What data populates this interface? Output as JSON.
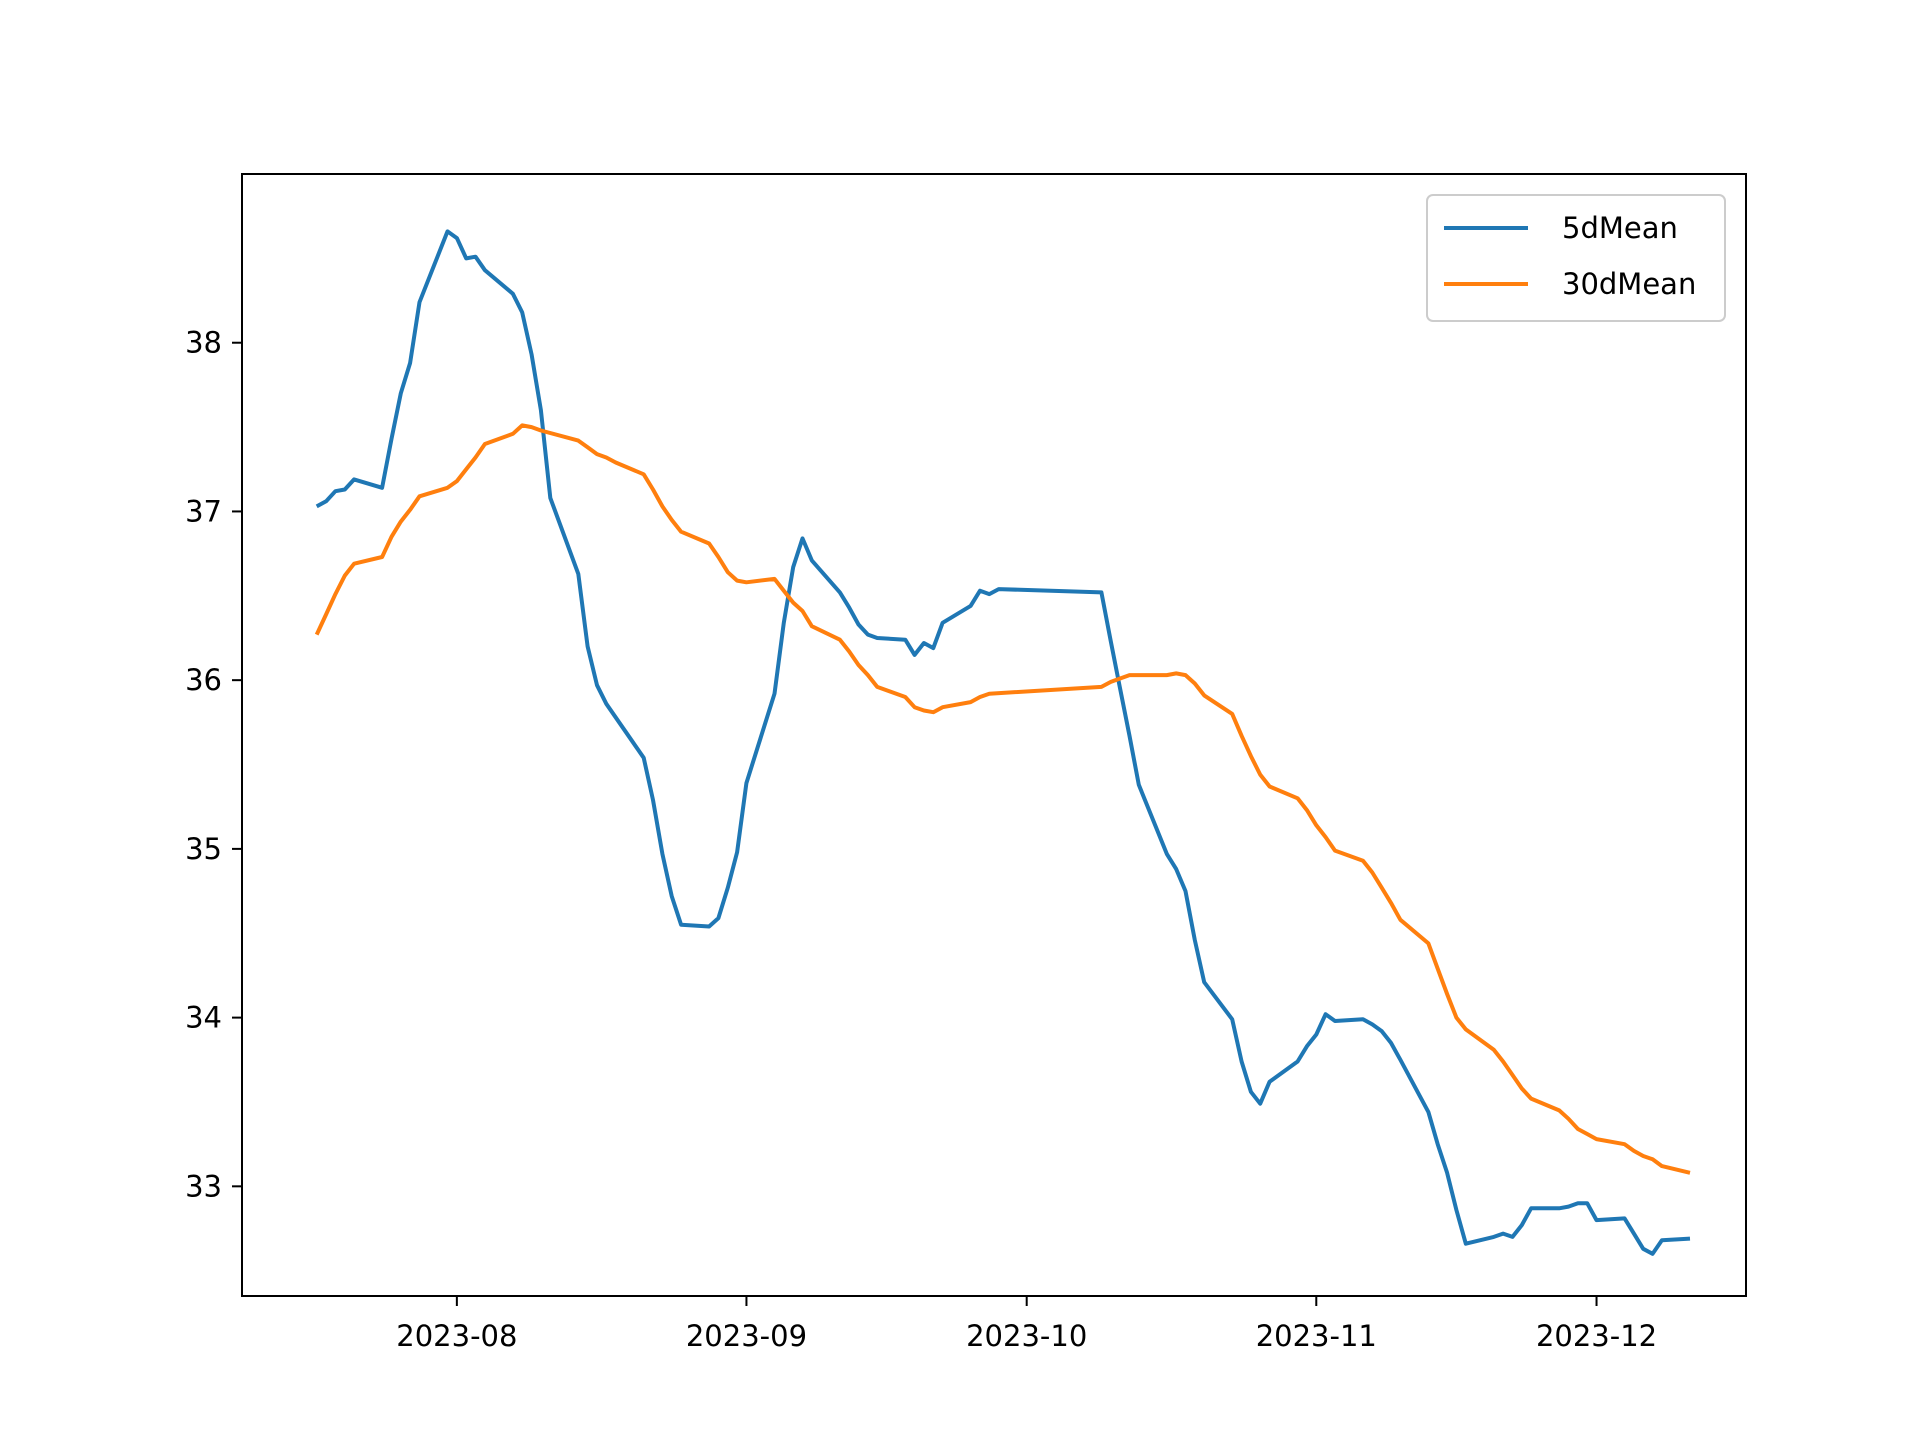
{
  "chart_data": {
    "type": "line",
    "title": "",
    "xlabel": "",
    "ylabel": "",
    "xlim": [
      "2023-07-09",
      "2023-12-17"
    ],
    "ylim": [
      32.35,
      39.0
    ],
    "grid": false,
    "legend_position": "top-right",
    "x_ticks": [
      {
        "date": "2023-08-01",
        "label": "2023-08"
      },
      {
        "date": "2023-09-01",
        "label": "2023-09"
      },
      {
        "date": "2023-10-01",
        "label": "2023-10"
      },
      {
        "date": "2023-11-01",
        "label": "2023-11"
      },
      {
        "date": "2023-12-01",
        "label": "2023-12"
      }
    ],
    "y_ticks": [
      {
        "value": 33,
        "label": "33"
      },
      {
        "value": 34,
        "label": "34"
      },
      {
        "value": 35,
        "label": "35"
      },
      {
        "value": 36,
        "label": "36"
      },
      {
        "value": 37,
        "label": "37"
      },
      {
        "value": 38,
        "label": "38"
      }
    ],
    "series": [
      {
        "name": "5dMean",
        "color": "#1f77b4",
        "points": [
          [
            "2023-07-17",
            37.03
          ],
          [
            "2023-07-18",
            37.06
          ],
          [
            "2023-07-19",
            37.12
          ],
          [
            "2023-07-20",
            37.13
          ],
          [
            "2023-07-21",
            37.19
          ],
          [
            "2023-07-24",
            37.14
          ],
          [
            "2023-07-25",
            37.43
          ],
          [
            "2023-07-26",
            37.7
          ],
          [
            "2023-07-27",
            37.88
          ],
          [
            "2023-07-28",
            38.24
          ],
          [
            "2023-07-31",
            38.66
          ],
          [
            "2023-08-01",
            38.62
          ],
          [
            "2023-08-02",
            38.5
          ],
          [
            "2023-08-03",
            38.51
          ],
          [
            "2023-08-04",
            38.43
          ],
          [
            "2023-08-07",
            38.29
          ],
          [
            "2023-08-08",
            38.18
          ],
          [
            "2023-08-09",
            37.93
          ],
          [
            "2023-08-10",
            37.6
          ],
          [
            "2023-08-11",
            37.08
          ],
          [
            "2023-08-14",
            36.63
          ],
          [
            "2023-08-15",
            36.2
          ],
          [
            "2023-08-16",
            35.97
          ],
          [
            "2023-08-17",
            35.86
          ],
          [
            "2023-08-21",
            35.54
          ],
          [
            "2023-08-22",
            35.29
          ],
          [
            "2023-08-23",
            34.97
          ],
          [
            "2023-08-24",
            34.72
          ],
          [
            "2023-08-25",
            34.55
          ],
          [
            "2023-08-28",
            34.54
          ],
          [
            "2023-08-29",
            34.59
          ],
          [
            "2023-08-30",
            34.77
          ],
          [
            "2023-08-31",
            34.98
          ],
          [
            "2023-09-01",
            35.39
          ],
          [
            "2023-09-04",
            35.92
          ],
          [
            "2023-09-05",
            36.34
          ],
          [
            "2023-09-06",
            36.67
          ],
          [
            "2023-09-07",
            36.84
          ],
          [
            "2023-09-08",
            36.71
          ],
          [
            "2023-09-11",
            36.52
          ],
          [
            "2023-09-12",
            36.43
          ],
          [
            "2023-09-13",
            36.33
          ],
          [
            "2023-09-14",
            36.27
          ],
          [
            "2023-09-15",
            36.25
          ],
          [
            "2023-09-18",
            36.24
          ],
          [
            "2023-09-19",
            36.15
          ],
          [
            "2023-09-20",
            36.22
          ],
          [
            "2023-09-21",
            36.19
          ],
          [
            "2023-09-22",
            36.34
          ],
          [
            "2023-09-25",
            36.44
          ],
          [
            "2023-09-26",
            36.53
          ],
          [
            "2023-09-27",
            36.51
          ],
          [
            "2023-09-28",
            36.54
          ],
          [
            "2023-10-09",
            36.52
          ],
          [
            "2023-10-10",
            36.23
          ],
          [
            "2023-10-11",
            35.95
          ],
          [
            "2023-10-12",
            35.67
          ],
          [
            "2023-10-13",
            35.38
          ],
          [
            "2023-10-16",
            34.97
          ],
          [
            "2023-10-17",
            34.88
          ],
          [
            "2023-10-18",
            34.75
          ],
          [
            "2023-10-19",
            34.46
          ],
          [
            "2023-10-20",
            34.21
          ],
          [
            "2023-10-23",
            33.99
          ],
          [
            "2023-10-24",
            33.74
          ],
          [
            "2023-10-25",
            33.56
          ],
          [
            "2023-10-26",
            33.49
          ],
          [
            "2023-10-27",
            33.62
          ],
          [
            "2023-10-30",
            33.74
          ],
          [
            "2023-10-31",
            33.83
          ],
          [
            "2023-11-01",
            33.9
          ],
          [
            "2023-11-02",
            34.02
          ],
          [
            "2023-11-03",
            33.98
          ],
          [
            "2023-11-06",
            33.99
          ],
          [
            "2023-11-07",
            33.96
          ],
          [
            "2023-11-08",
            33.92
          ],
          [
            "2023-11-09",
            33.85
          ],
          [
            "2023-11-10",
            33.75
          ],
          [
            "2023-11-13",
            33.44
          ],
          [
            "2023-11-14",
            33.25
          ],
          [
            "2023-11-15",
            33.08
          ],
          [
            "2023-11-16",
            32.86
          ],
          [
            "2023-11-17",
            32.66
          ],
          [
            "2023-11-20",
            32.7
          ],
          [
            "2023-11-21",
            32.72
          ],
          [
            "2023-11-22",
            32.7
          ],
          [
            "2023-11-23",
            32.77
          ],
          [
            "2023-11-24",
            32.87
          ],
          [
            "2023-11-27",
            32.87
          ],
          [
            "2023-11-28",
            32.88
          ],
          [
            "2023-11-29",
            32.9
          ],
          [
            "2023-11-30",
            32.9
          ],
          [
            "2023-12-01",
            32.8
          ],
          [
            "2023-12-04",
            32.81
          ],
          [
            "2023-12-05",
            32.72
          ],
          [
            "2023-12-06",
            32.63
          ],
          [
            "2023-12-07",
            32.6
          ],
          [
            "2023-12-08",
            32.68
          ],
          [
            "2023-12-11",
            32.69
          ]
        ]
      },
      {
        "name": "30dMean",
        "color": "#ff7f0e",
        "points": [
          [
            "2023-07-17",
            36.27
          ],
          [
            "2023-07-18",
            36.39
          ],
          [
            "2023-07-19",
            36.51
          ],
          [
            "2023-07-20",
            36.62
          ],
          [
            "2023-07-21",
            36.69
          ],
          [
            "2023-07-24",
            36.73
          ],
          [
            "2023-07-25",
            36.85
          ],
          [
            "2023-07-26",
            36.94
          ],
          [
            "2023-07-27",
            37.01
          ],
          [
            "2023-07-28",
            37.09
          ],
          [
            "2023-07-31",
            37.14
          ],
          [
            "2023-08-01",
            37.18
          ],
          [
            "2023-08-02",
            37.25
          ],
          [
            "2023-08-03",
            37.32
          ],
          [
            "2023-08-04",
            37.4
          ],
          [
            "2023-08-07",
            37.46
          ],
          [
            "2023-08-08",
            37.51
          ],
          [
            "2023-08-09",
            37.5
          ],
          [
            "2023-08-10",
            37.48
          ],
          [
            "2023-08-14",
            37.42
          ],
          [
            "2023-08-15",
            37.38
          ],
          [
            "2023-08-16",
            37.34
          ],
          [
            "2023-08-17",
            37.32
          ],
          [
            "2023-08-18",
            37.29
          ],
          [
            "2023-08-21",
            37.22
          ],
          [
            "2023-08-22",
            37.13
          ],
          [
            "2023-08-23",
            37.03
          ],
          [
            "2023-08-24",
            36.95
          ],
          [
            "2023-08-25",
            36.88
          ],
          [
            "2023-08-28",
            36.81
          ],
          [
            "2023-08-29",
            36.73
          ],
          [
            "2023-08-30",
            36.64
          ],
          [
            "2023-08-31",
            36.59
          ],
          [
            "2023-09-01",
            36.58
          ],
          [
            "2023-09-04",
            36.6
          ],
          [
            "2023-09-05",
            36.53
          ],
          [
            "2023-09-06",
            36.46
          ],
          [
            "2023-09-07",
            36.41
          ],
          [
            "2023-09-08",
            36.32
          ],
          [
            "2023-09-11",
            36.24
          ],
          [
            "2023-09-12",
            36.17
          ],
          [
            "2023-09-13",
            36.09
          ],
          [
            "2023-09-14",
            36.03
          ],
          [
            "2023-09-15",
            35.96
          ],
          [
            "2023-09-18",
            35.9
          ],
          [
            "2023-09-19",
            35.84
          ],
          [
            "2023-09-20",
            35.82
          ],
          [
            "2023-09-21",
            35.81
          ],
          [
            "2023-09-22",
            35.84
          ],
          [
            "2023-09-25",
            35.87
          ],
          [
            "2023-09-26",
            35.9
          ],
          [
            "2023-09-27",
            35.92
          ],
          [
            "2023-10-09",
            35.96
          ],
          [
            "2023-10-10",
            35.99
          ],
          [
            "2023-10-11",
            36.01
          ],
          [
            "2023-10-12",
            36.03
          ],
          [
            "2023-10-16",
            36.03
          ],
          [
            "2023-10-17",
            36.04
          ],
          [
            "2023-10-18",
            36.03
          ],
          [
            "2023-10-19",
            35.98
          ],
          [
            "2023-10-20",
            35.91
          ],
          [
            "2023-10-23",
            35.8
          ],
          [
            "2023-10-24",
            35.67
          ],
          [
            "2023-10-25",
            35.55
          ],
          [
            "2023-10-26",
            35.44
          ],
          [
            "2023-10-27",
            35.37
          ],
          [
            "2023-10-30",
            35.3
          ],
          [
            "2023-10-31",
            35.23
          ],
          [
            "2023-11-01",
            35.14
          ],
          [
            "2023-11-02",
            35.07
          ],
          [
            "2023-11-03",
            34.99
          ],
          [
            "2023-11-06",
            34.93
          ],
          [
            "2023-11-07",
            34.86
          ],
          [
            "2023-11-08",
            34.77
          ],
          [
            "2023-11-09",
            34.68
          ],
          [
            "2023-11-10",
            34.58
          ],
          [
            "2023-11-13",
            34.44
          ],
          [
            "2023-11-14",
            34.29
          ],
          [
            "2023-11-15",
            34.14
          ],
          [
            "2023-11-16",
            34.0
          ],
          [
            "2023-11-17",
            33.93
          ],
          [
            "2023-11-20",
            33.81
          ],
          [
            "2023-11-21",
            33.74
          ],
          [
            "2023-11-22",
            33.66
          ],
          [
            "2023-11-23",
            33.58
          ],
          [
            "2023-11-24",
            33.52
          ],
          [
            "2023-11-27",
            33.45
          ],
          [
            "2023-11-28",
            33.4
          ],
          [
            "2023-11-29",
            33.34
          ],
          [
            "2023-11-30",
            33.31
          ],
          [
            "2023-12-01",
            33.28
          ],
          [
            "2023-12-04",
            33.25
          ],
          [
            "2023-12-05",
            33.21
          ],
          [
            "2023-12-06",
            33.18
          ],
          [
            "2023-12-07",
            33.16
          ],
          [
            "2023-12-08",
            33.12
          ],
          [
            "2023-12-11",
            33.08
          ]
        ]
      }
    ]
  }
}
